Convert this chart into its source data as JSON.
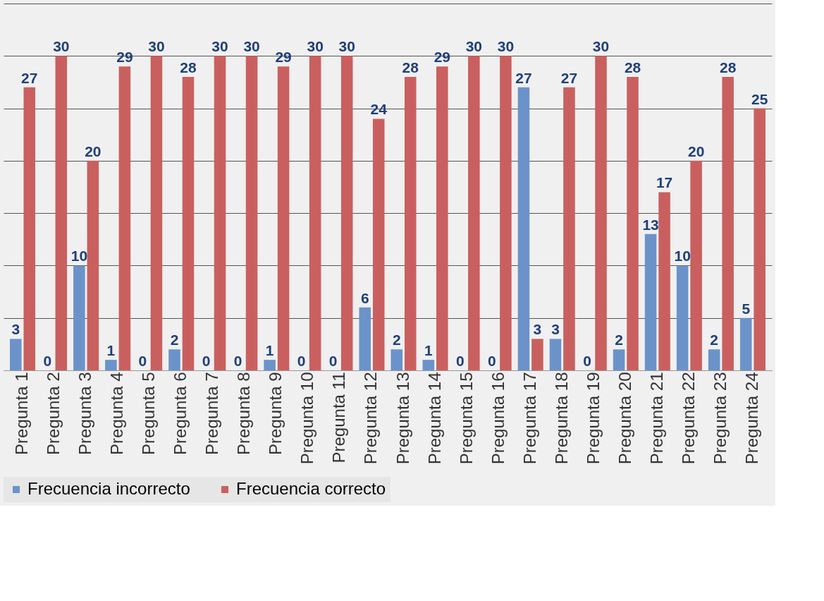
{
  "chart_data": {
    "type": "bar",
    "categories": [
      "Pregunta 1",
      "Pregunta 2",
      "Pregunta 3",
      "Pregunta 4",
      "Pregunta 5",
      "Pregunta 6",
      "Pregunta 7",
      "Pregunta 8",
      "Pregunta 9",
      "Pregunta 10",
      "Pregunta 11",
      "Pregunta 12",
      "Pregunta 13",
      "Pregunta 14",
      "Pregunta 15",
      "Pregunta 16",
      "Pregunta 17",
      "Pregunta 18",
      "Pregunta 19",
      "Pregunta 20",
      "Pregunta 21",
      "Pregunta 22",
      "Pregunta 23",
      "Pregunta 24"
    ],
    "series": [
      {
        "name": "Frecuencia  incorrecto",
        "color": "#6b93c9",
        "values": [
          3,
          0,
          10,
          1,
          0,
          2,
          0,
          0,
          1,
          0,
          0,
          6,
          2,
          1,
          0,
          0,
          27,
          3,
          0,
          2,
          13,
          10,
          2,
          5
        ]
      },
      {
        "name": "Frecuencia correcto",
        "color": "#c9605f",
        "values": [
          27,
          30,
          20,
          29,
          30,
          28,
          30,
          30,
          29,
          30,
          30,
          24,
          28,
          29,
          30,
          30,
          3,
          27,
          30,
          28,
          17,
          20,
          28,
          25
        ]
      }
    ],
    "ylim": [
      0,
      35
    ],
    "yticks": [
      {
        "value": 0,
        "label": null
      },
      {
        "value": 5,
        "label": null
      },
      {
        "value": 10,
        "label": null
      },
      {
        "value": 15,
        "label": null
      },
      {
        "value": 20,
        "label": null
      },
      {
        "value": 25,
        "label": null
      },
      {
        "value": 30,
        "label": null
      },
      {
        "value": 35,
        "label": null
      }
    ],
    "tick_labels": "x",
    "grid": "y",
    "data_labels": true,
    "legend": "bottom"
  }
}
